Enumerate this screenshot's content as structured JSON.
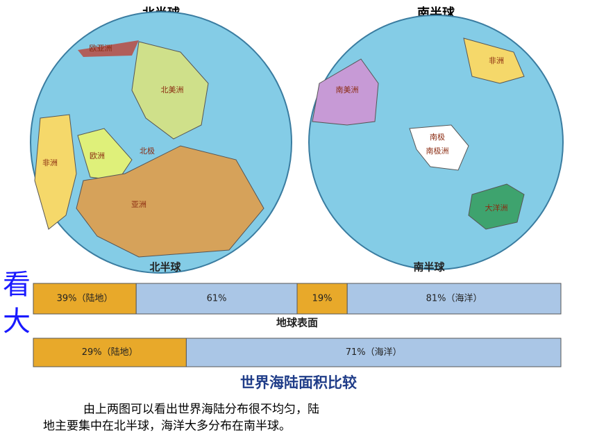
{
  "maps": [
    {
      "title": "北半球",
      "labels": [
        "欧亚洲",
        "北美洲",
        "北极",
        "非洲",
        "欧洲",
        "亚洲"
      ]
    },
    {
      "title": "南半球",
      "labels": [
        "非洲",
        "南美洲",
        "南极",
        "南极洲",
        "大洋洲"
      ]
    }
  ],
  "overlay_text": [
    "看",
    "大"
  ],
  "bars": [
    {
      "title": "北半球",
      "segments": [
        {
          "value": 39,
          "label": "39%（陆地）"
        },
        {
          "value": 61,
          "label": "61%"
        }
      ]
    },
    {
      "title": "南半球",
      "segments": [
        {
          "value": 19,
          "label": "19%"
        },
        {
          "value": 81,
          "label": "81%（海洋）"
        }
      ]
    },
    {
      "title": "地球表面",
      "segments": [
        {
          "value": 29,
          "label": "29%（陆地）"
        },
        {
          "value": 71,
          "label": "71%（海洋）"
        }
      ]
    }
  ],
  "caption": "世界海陆面积比较",
  "paragraph": [
    "由上两图可以看出世界海陆分布很不均匀，陆",
    "地主要集中在北半球，海洋大多分布在南半球。"
  ]
}
